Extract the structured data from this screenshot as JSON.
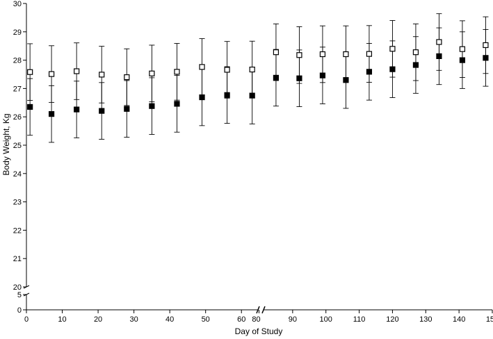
{
  "chart_data": {
    "type": "scatter",
    "xlabel": "Day of Study",
    "ylabel": "Body Weight, Kg",
    "grid": false,
    "legend": "none",
    "x_axis_break": [
      65,
      80
    ],
    "y_axis_break": [
      5,
      20
    ],
    "x_segments": [
      {
        "xlim": [
          0,
          65
        ],
        "ticks": [
          0,
          10,
          20,
          30,
          40,
          50,
          60
        ],
        "tick_labels": [
          "0",
          "10",
          "20",
          "30",
          "40",
          "50",
          "60"
        ]
      },
      {
        "xlim": [
          80,
          150
        ],
        "ticks": [
          80,
          90,
          100,
          110,
          120,
          130,
          140,
          150
        ],
        "tick_labels": [
          "80",
          "90",
          "100",
          "110",
          "120",
          "130",
          "140",
          "150"
        ]
      }
    ],
    "y_segments": [
      {
        "ylim": [
          0,
          5
        ],
        "ticks": [
          0,
          5
        ],
        "tick_labels": [
          "0",
          "5"
        ]
      },
      {
        "ylim": [
          20,
          30
        ],
        "ticks": [
          20,
          21,
          22,
          23,
          24,
          25,
          26,
          27,
          28,
          29,
          30
        ],
        "tick_labels": [
          "20",
          "21",
          "22",
          "23",
          "24",
          "25",
          "26",
          "27",
          "28",
          "29",
          "30"
        ]
      }
    ],
    "x": [
      1,
      7,
      14,
      21,
      28,
      35,
      42,
      49,
      56,
      63,
      85,
      92,
      99,
      106,
      113,
      120,
      127,
      134,
      141,
      148
    ],
    "series": [
      {
        "marker": "open-square",
        "color": "#000000",
        "values": [
          27.58,
          27.51,
          27.61,
          27.49,
          27.4,
          27.53,
          27.59,
          27.76,
          27.66,
          27.67,
          28.28,
          28.18,
          28.21,
          28.21,
          28.22,
          28.4,
          28.28,
          28.64,
          28.39,
          28.53
        ],
        "error": [
          1.0,
          1.0,
          1.0,
          1.0,
          1.0,
          1.0,
          1.0,
          1.0,
          1.0,
          1.0,
          1.0,
          1.0,
          1.0,
          1.0,
          1.0,
          1.0,
          1.0,
          1.0,
          1.0,
          1.0
        ]
      },
      {
        "marker": "filled-square",
        "color": "#000000",
        "values": [
          26.35,
          26.1,
          26.26,
          26.21,
          26.28,
          26.38,
          26.46,
          26.69,
          26.77,
          26.75,
          27.38,
          27.36,
          27.46,
          27.3,
          27.59,
          27.68,
          27.83,
          28.14,
          28.0,
          28.08
        ],
        "error": [
          1.0,
          1.0,
          1.0,
          1.0,
          1.0,
          1.0,
          1.0,
          1.0,
          1.0,
          1.0,
          1.0,
          1.0,
          1.0,
          1.0,
          1.0,
          1.0,
          1.0,
          1.0,
          1.0,
          1.0
        ]
      }
    ]
  }
}
